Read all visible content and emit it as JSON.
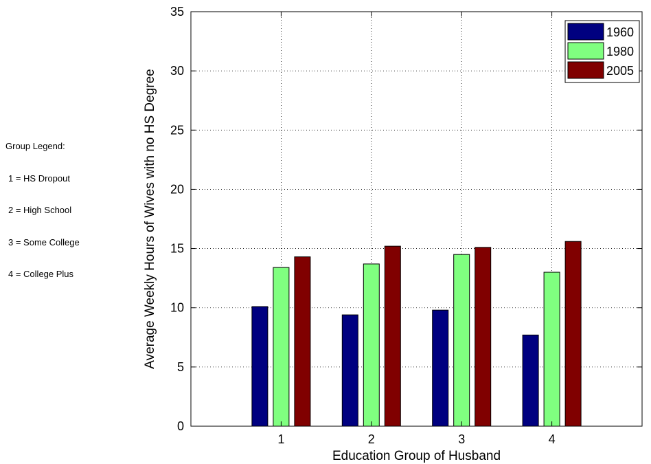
{
  "group_legend": {
    "title": "Group Legend:",
    "items": [
      "1 = HS Dropout",
      "2 = High School",
      "3 = Some College",
      "4 = College Plus"
    ]
  },
  "chart_data": {
    "type": "bar",
    "categories": [
      "1",
      "2",
      "3",
      "4"
    ],
    "series": [
      {
        "name": "1960",
        "color": "#000080",
        "values": [
          10.1,
          9.4,
          9.8,
          7.7
        ]
      },
      {
        "name": "1980",
        "color": "#80ff80",
        "values": [
          13.4,
          13.7,
          14.5,
          13.0
        ]
      },
      {
        "name": "2005",
        "color": "#800000",
        "values": [
          14.3,
          15.2,
          15.1,
          15.6
        ]
      }
    ],
    "xlabel": "Education Group of Husband",
    "ylabel": "Average Weekly Hours of Wives with no HS Degree",
    "ylim": [
      0,
      35
    ],
    "yticks": [
      0,
      5,
      10,
      15,
      20,
      25,
      30,
      35
    ],
    "grid": true,
    "legend_position": "top-right"
  }
}
